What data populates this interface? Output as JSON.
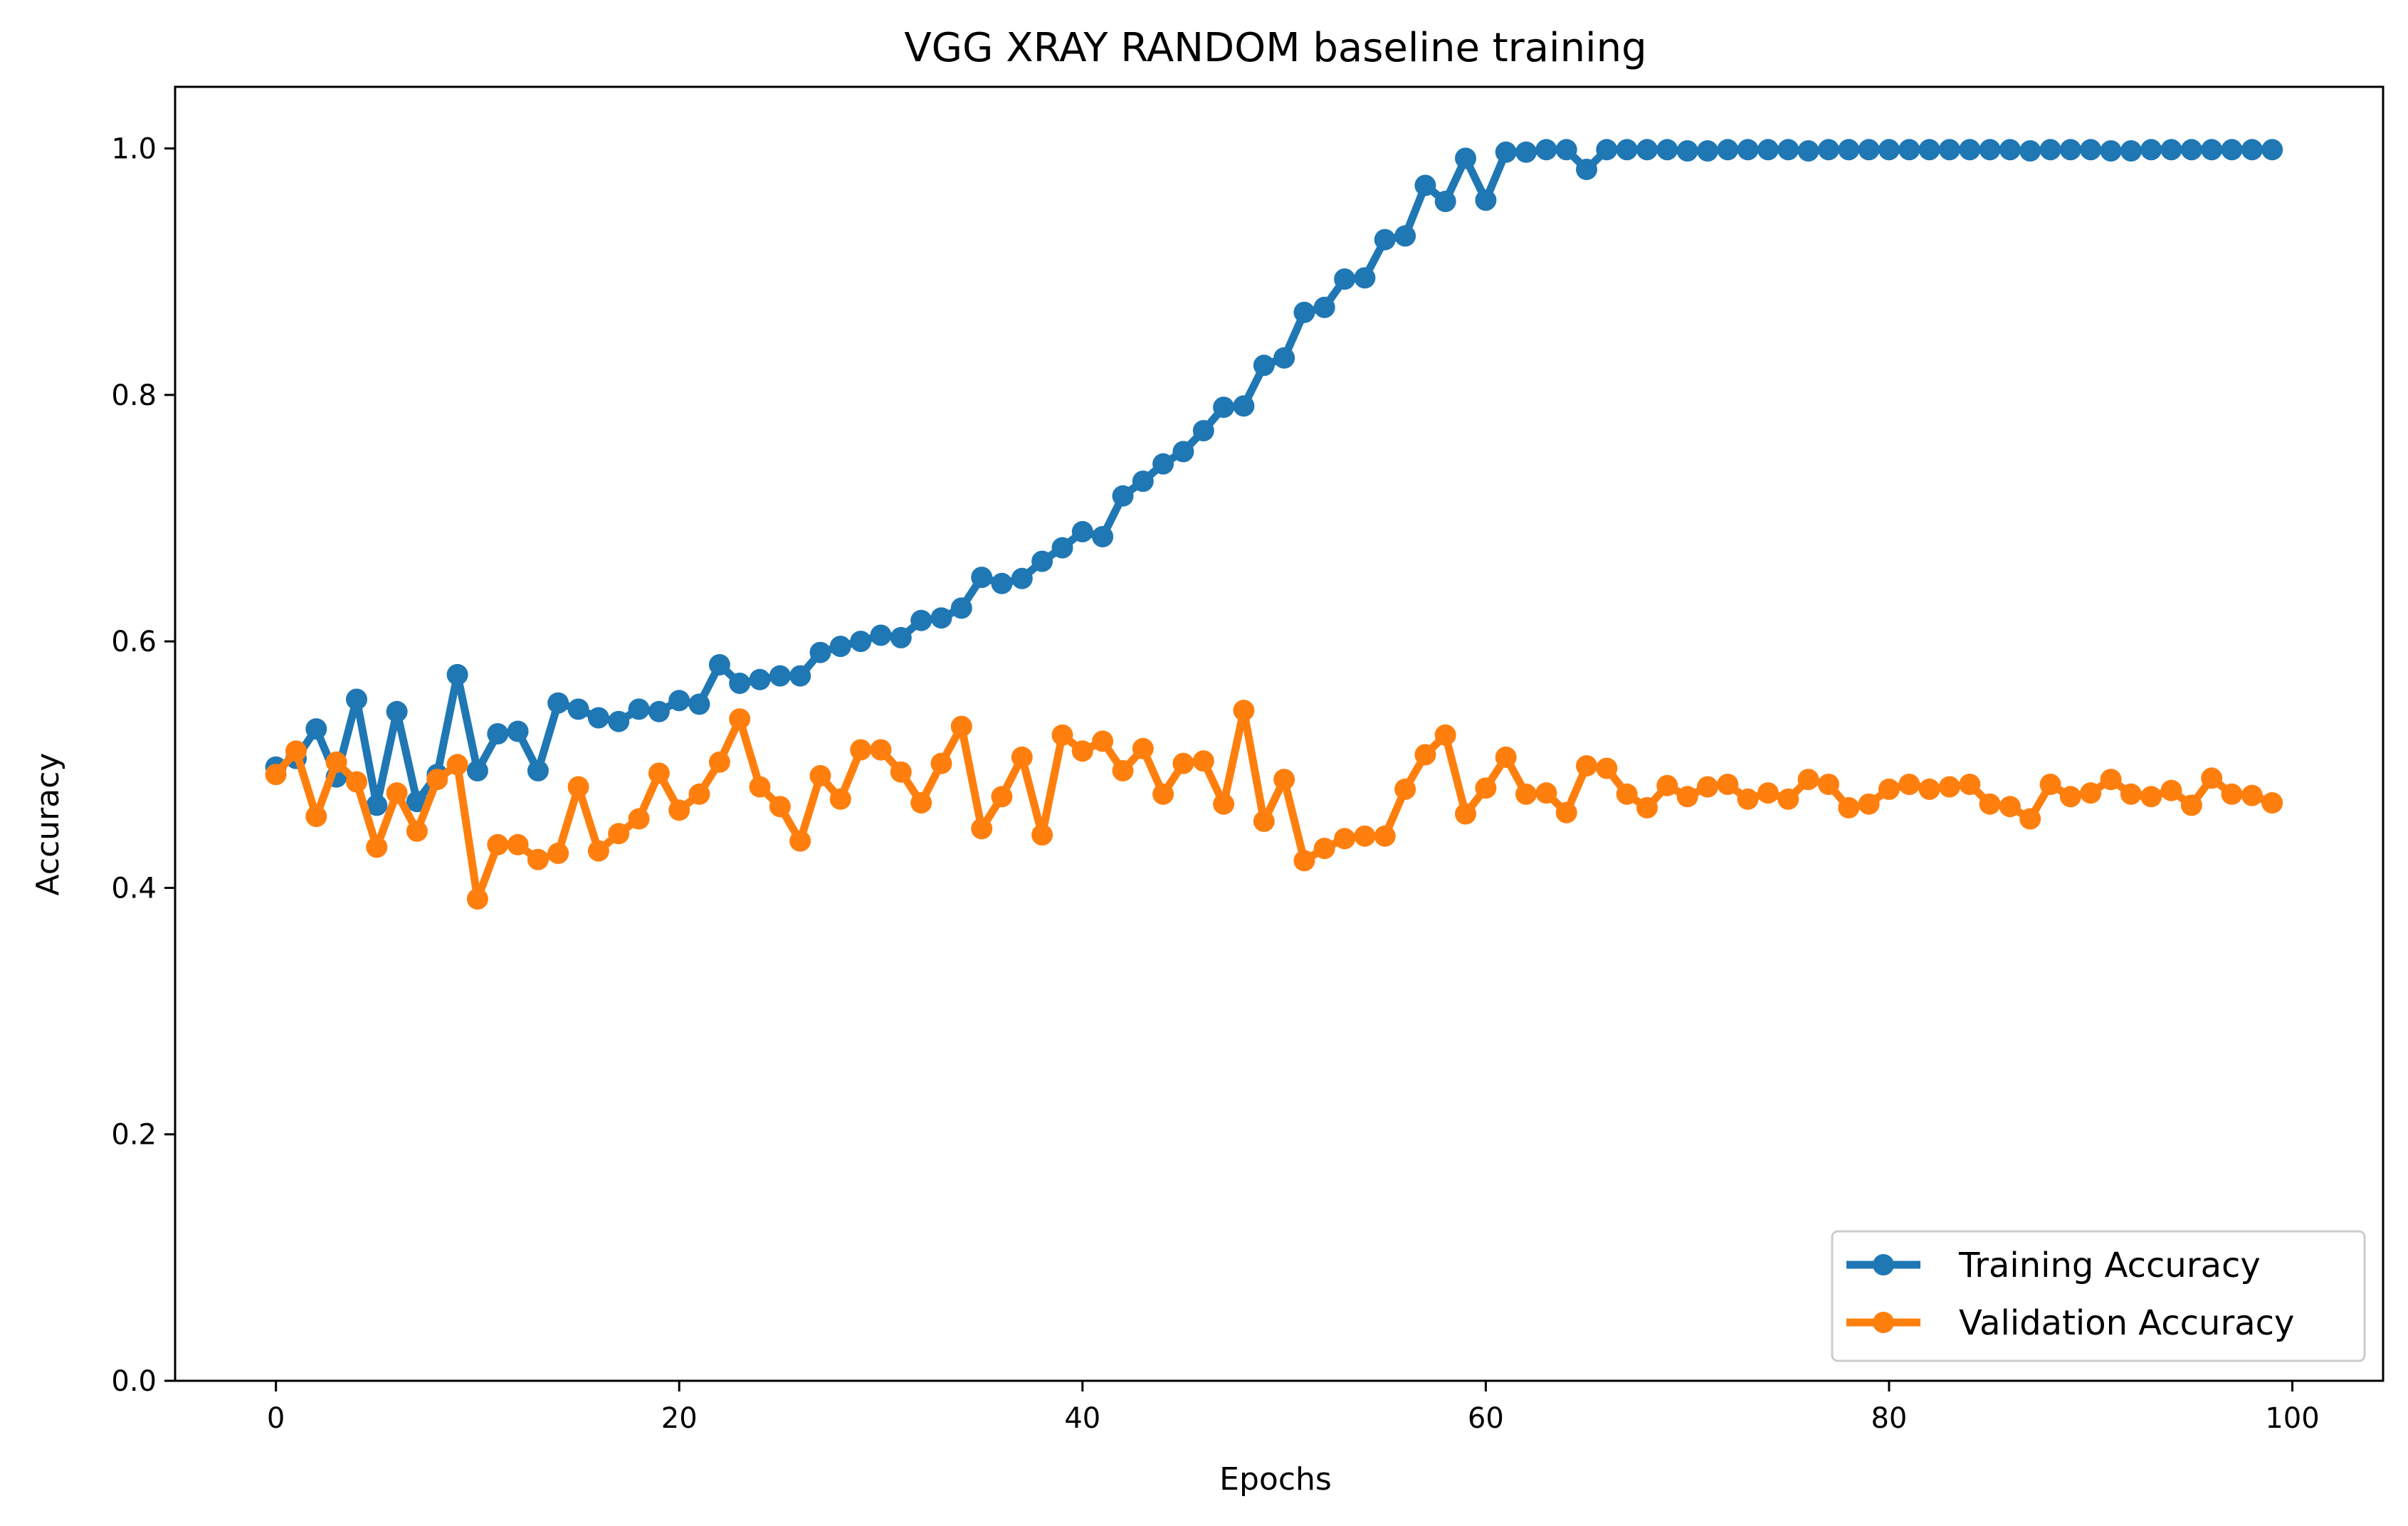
{
  "chart_data": {
    "type": "line",
    "title": "VGG XRAY RANDOM baseline training",
    "xlabel": "Epochs",
    "ylabel": "Accuracy",
    "xlim": [
      -5,
      104.5
    ],
    "ylim": [
      0.0,
      1.05
    ],
    "xticks": [
      0,
      20,
      40,
      60,
      80,
      100
    ],
    "yticks": [
      0.0,
      0.2,
      0.4,
      0.6,
      0.8,
      1.0
    ],
    "xtick_labels": [
      "0",
      "20",
      "40",
      "60",
      "80",
      "100"
    ],
    "ytick_labels": [
      "0.0",
      "0.2",
      "0.4",
      "0.6",
      "0.8",
      "1.0"
    ],
    "grid": false,
    "legend_position": "lower-right",
    "x": [
      0,
      1,
      2,
      3,
      4,
      5,
      6,
      7,
      8,
      9,
      10,
      11,
      12,
      13,
      14,
      15,
      16,
      17,
      18,
      19,
      20,
      21,
      22,
      23,
      24,
      25,
      26,
      27,
      28,
      29,
      30,
      31,
      32,
      33,
      34,
      35,
      36,
      37,
      38,
      39,
      40,
      41,
      42,
      43,
      44,
      45,
      46,
      47,
      48,
      49,
      50,
      51,
      52,
      53,
      54,
      55,
      56,
      57,
      58,
      59,
      60,
      61,
      62,
      63,
      64,
      65,
      66,
      67,
      68,
      69,
      70,
      71,
      72,
      73,
      74,
      75,
      76,
      77,
      78,
      79,
      80,
      81,
      82,
      83,
      84,
      85,
      86,
      87,
      88,
      89,
      90,
      91,
      92,
      93,
      94,
      95,
      96,
      97,
      98,
      99
    ],
    "series": [
      {
        "name": "Training Accuracy",
        "color": "#1f77b4",
        "values": [
          0.498,
          0.505,
          0.529,
          0.49,
          0.553,
          0.467,
          0.543,
          0.47,
          0.492,
          0.573,
          0.495,
          0.525,
          0.527,
          0.495,
          0.55,
          0.545,
          0.538,
          0.535,
          0.545,
          0.543,
          0.552,
          0.549,
          0.581,
          0.566,
          0.569,
          0.572,
          0.572,
          0.591,
          0.596,
          0.6,
          0.605,
          0.603,
          0.617,
          0.619,
          0.627,
          0.652,
          0.647,
          0.651,
          0.665,
          0.676,
          0.689,
          0.685,
          0.718,
          0.73,
          0.744,
          0.754,
          0.771,
          0.79,
          0.791,
          0.824,
          0.83,
          0.867,
          0.871,
          0.894,
          0.895,
          0.926,
          0.929,
          0.97,
          0.957,
          0.992,
          0.958,
          0.997,
          0.997,
          0.999,
          0.999,
          0.983,
          0.999,
          0.999,
          0.999,
          0.999,
          0.998,
          0.998,
          0.999,
          0.999,
          0.999,
          0.999,
          0.998,
          0.999,
          0.999,
          0.999,
          0.999,
          0.999,
          0.999,
          0.999,
          0.999,
          0.999,
          0.999,
          0.998,
          0.999,
          0.999,
          0.999,
          0.998,
          0.998,
          0.999,
          0.999,
          0.999,
          0.999,
          0.999,
          0.999,
          0.999
        ]
      },
      {
        "name": "Validation Accuracy",
        "color": "#ff7f0e",
        "values": [
          0.492,
          0.511,
          0.458,
          0.502,
          0.486,
          0.433,
          0.477,
          0.446,
          0.488,
          0.5,
          0.391,
          0.435,
          0.435,
          0.423,
          0.428,
          0.482,
          0.43,
          0.444,
          0.456,
          0.493,
          0.463,
          0.476,
          0.502,
          0.537,
          0.482,
          0.466,
          0.438,
          0.491,
          0.472,
          0.512,
          0.512,
          0.494,
          0.469,
          0.501,
          0.531,
          0.448,
          0.474,
          0.506,
          0.443,
          0.524,
          0.511,
          0.519,
          0.495,
          0.513,
          0.476,
          0.501,
          0.503,
          0.468,
          0.544,
          0.454,
          0.488,
          0.422,
          0.432,
          0.44,
          0.442,
          0.442,
          0.48,
          0.508,
          0.524,
          0.46,
          0.481,
          0.506,
          0.476,
          0.477,
          0.461,
          0.499,
          0.497,
          0.476,
          0.465,
          0.483,
          0.474,
          0.482,
          0.484,
          0.472,
          0.477,
          0.472,
          0.488,
          0.484,
          0.465,
          0.468,
          0.48,
          0.484,
          0.48,
          0.482,
          0.484,
          0.468,
          0.466,
          0.456,
          0.484,
          0.474,
          0.477,
          0.488,
          0.476,
          0.474,
          0.479,
          0.467,
          0.489,
          0.476,
          0.475,
          0.469
        ]
      }
    ]
  }
}
